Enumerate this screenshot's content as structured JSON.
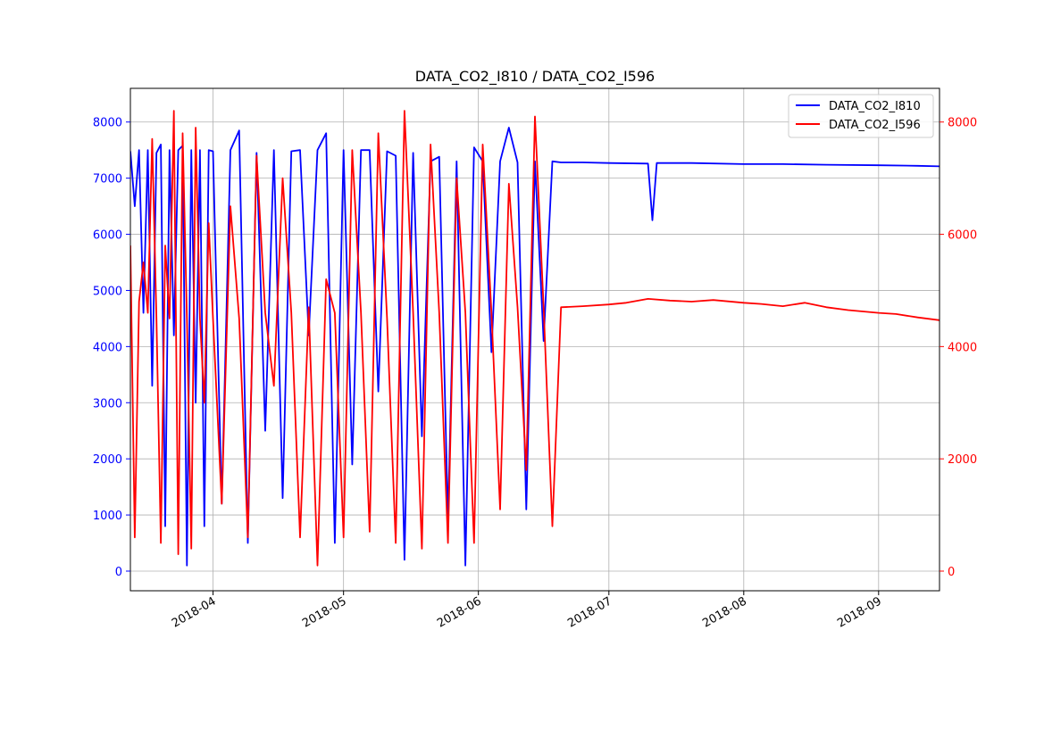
{
  "chart_data": {
    "type": "line",
    "title": "DATA_CO2_I810 / DATA_CO2_I596",
    "xlabel": "",
    "ylabel": "",
    "y2label": "",
    "x_ticks": [
      "2018-04",
      "2018-05",
      "2018-06",
      "2018-07",
      "2018-08",
      "2018-09"
    ],
    "xlim": [
      "2018-03-13",
      "2018-09-15"
    ],
    "ylim": [
      -350,
      8600
    ],
    "y_ticks": [
      0,
      1000,
      2000,
      3000,
      4000,
      5000,
      6000,
      7000,
      8000
    ],
    "y2lim": [
      -350,
      8600
    ],
    "y2_ticks": [
      0,
      2000,
      4000,
      6000,
      8000
    ],
    "grid": true,
    "legend_position": "top-right",
    "series": [
      {
        "name": "DATA_CO2_I810",
        "color": "#0000ff",
        "axis": "left",
        "x": [
          "2018-03-13",
          "2018-03-14",
          "2018-03-15",
          "2018-03-16",
          "2018-03-17",
          "2018-03-18",
          "2018-03-19",
          "2018-03-20",
          "2018-03-21",
          "2018-03-22",
          "2018-03-23",
          "2018-03-24",
          "2018-03-25",
          "2018-03-26",
          "2018-03-27",
          "2018-03-28",
          "2018-03-29",
          "2018-03-30",
          "2018-03-31",
          "2018-04-01",
          "2018-04-03",
          "2018-04-05",
          "2018-04-07",
          "2018-04-09",
          "2018-04-11",
          "2018-04-13",
          "2018-04-15",
          "2018-04-17",
          "2018-04-19",
          "2018-04-21",
          "2018-04-23",
          "2018-04-25",
          "2018-04-27",
          "2018-04-29",
          "2018-05-01",
          "2018-05-03",
          "2018-05-05",
          "2018-05-07",
          "2018-05-09",
          "2018-05-11",
          "2018-05-13",
          "2018-05-15",
          "2018-05-17",
          "2018-05-19",
          "2018-05-21",
          "2018-05-23",
          "2018-05-25",
          "2018-05-27",
          "2018-05-29",
          "2018-05-31",
          "2018-06-02",
          "2018-06-04",
          "2018-06-06",
          "2018-06-08",
          "2018-06-10",
          "2018-06-12",
          "2018-06-14",
          "2018-06-16",
          "2018-06-18",
          "2018-06-20",
          "2018-06-25",
          "2018-07-01",
          "2018-07-10",
          "2018-07-11",
          "2018-07-12",
          "2018-07-20",
          "2018-08-01",
          "2018-08-10",
          "2018-08-20",
          "2018-09-01",
          "2018-09-10",
          "2018-09-15"
        ],
        "values": [
          7480,
          6500,
          7500,
          4600,
          7500,
          3300,
          7450,
          7600,
          800,
          7500,
          4200,
          7500,
          7580,
          100,
          7500,
          3000,
          7500,
          800,
          7500,
          7480,
          1200,
          7500,
          7850,
          500,
          7450,
          2500,
          7500,
          1300,
          7480,
          7500,
          4200,
          7500,
          7800,
          500,
          7500,
          1900,
          7500,
          7500,
          3200,
          7480,
          7400,
          200,
          7450,
          2400,
          7300,
          7380,
          900,
          7300,
          100,
          7550,
          7300,
          3900,
          7300,
          7900,
          7280,
          1100,
          7300,
          4100,
          7300,
          7280,
          7280,
          7270,
          7260,
          6250,
          7270,
          7270,
          7250,
          7250,
          7240,
          7230,
          7220,
          7210
        ]
      },
      {
        "name": "DATA_CO2_I596",
        "color": "#ff0000",
        "axis": "right",
        "x": [
          "2018-03-13",
          "2018-03-14",
          "2018-03-15",
          "2018-03-16",
          "2018-03-17",
          "2018-03-18",
          "2018-03-19",
          "2018-03-20",
          "2018-03-21",
          "2018-03-22",
          "2018-03-23",
          "2018-03-24",
          "2018-03-25",
          "2018-03-26",
          "2018-03-27",
          "2018-03-28",
          "2018-03-29",
          "2018-03-30",
          "2018-03-31",
          "2018-04-01",
          "2018-04-03",
          "2018-04-05",
          "2018-04-07",
          "2018-04-09",
          "2018-04-11",
          "2018-04-13",
          "2018-04-15",
          "2018-04-17",
          "2018-04-19",
          "2018-04-21",
          "2018-04-23",
          "2018-04-25",
          "2018-04-27",
          "2018-04-29",
          "2018-05-01",
          "2018-05-03",
          "2018-05-05",
          "2018-05-07",
          "2018-05-09",
          "2018-05-11",
          "2018-05-13",
          "2018-05-15",
          "2018-05-17",
          "2018-05-19",
          "2018-05-21",
          "2018-05-23",
          "2018-05-25",
          "2018-05-27",
          "2018-05-29",
          "2018-05-31",
          "2018-06-02",
          "2018-06-04",
          "2018-06-06",
          "2018-06-08",
          "2018-06-10",
          "2018-06-12",
          "2018-06-14",
          "2018-06-16",
          "2018-06-18",
          "2018-06-20",
          "2018-06-25",
          "2018-07-01",
          "2018-07-05",
          "2018-07-10",
          "2018-07-15",
          "2018-07-20",
          "2018-07-25",
          "2018-08-01",
          "2018-08-05",
          "2018-08-10",
          "2018-08-15",
          "2018-08-20",
          "2018-08-25",
          "2018-09-01",
          "2018-09-05",
          "2018-09-10",
          "2018-09-15"
        ],
        "values": [
          5800,
          600,
          4800,
          5500,
          4600,
          7700,
          4500,
          500,
          5800,
          4500,
          8200,
          300,
          7800,
          4500,
          400,
          7900,
          4500,
          3000,
          6200,
          4500,
          1200,
          6500,
          4500,
          600,
          7400,
          4600,
          3300,
          7000,
          4600,
          600,
          4700,
          100,
          5200,
          4600,
          600,
          7500,
          4600,
          700,
          7800,
          4500,
          500,
          8200,
          4600,
          400,
          7600,
          4600,
          500,
          7000,
          4600,
          500,
          7600,
          4600,
          1100,
          6900,
          4700,
          1800,
          8100,
          4700,
          800,
          4700,
          4720,
          4750,
          4780,
          4850,
          4820,
          4800,
          4830,
          4780,
          4760,
          4720,
          4780,
          4700,
          4650,
          4600,
          4580,
          4520,
          4470
        ]
      }
    ]
  }
}
